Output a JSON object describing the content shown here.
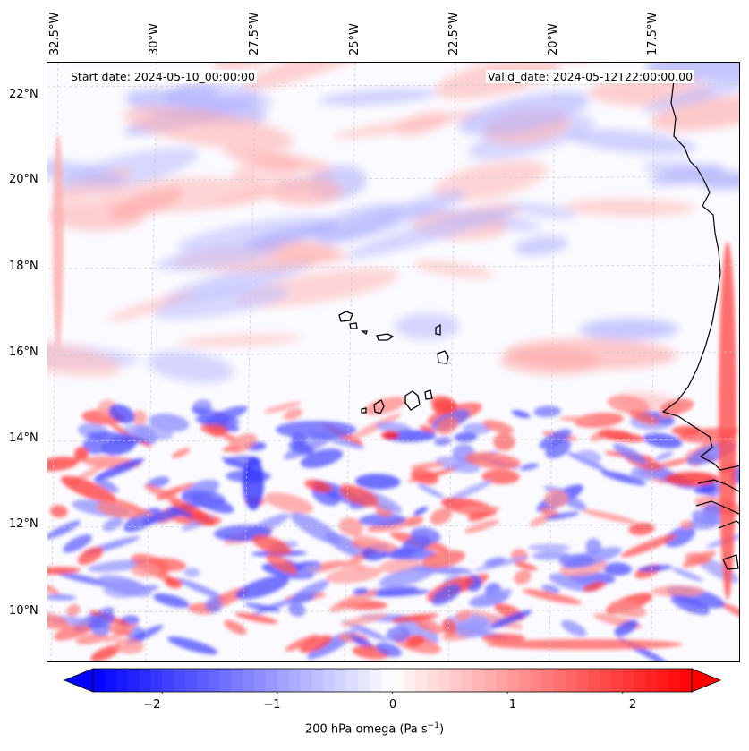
{
  "map": {
    "start_date": "Start date: 2024-05-10_00:00:00",
    "valid_date": "Valid_date: 2024-05-12T22:00:00.00",
    "lon_labels": [
      "32.5°W",
      "30°W",
      "27.5°W",
      "25°W",
      "22.5°W",
      "20°W",
      "17.5°W"
    ],
    "lat_labels": [
      "22°N",
      "20°N",
      "18°N",
      "16°N",
      "14°N",
      "12°N",
      "10°N"
    ],
    "colorbar": {
      "ticks": [
        "−2",
        "−1",
        "0",
        "1",
        "2"
      ],
      "label": "200 hPa omega (Pa s",
      "label_sup": "−1",
      "label_end": ")",
      "min": -2.6,
      "max": 2.6,
      "low_color": "#0000ff",
      "high_color": "#ff0000"
    },
    "colormap": "bwr",
    "gridlines": true
  }
}
